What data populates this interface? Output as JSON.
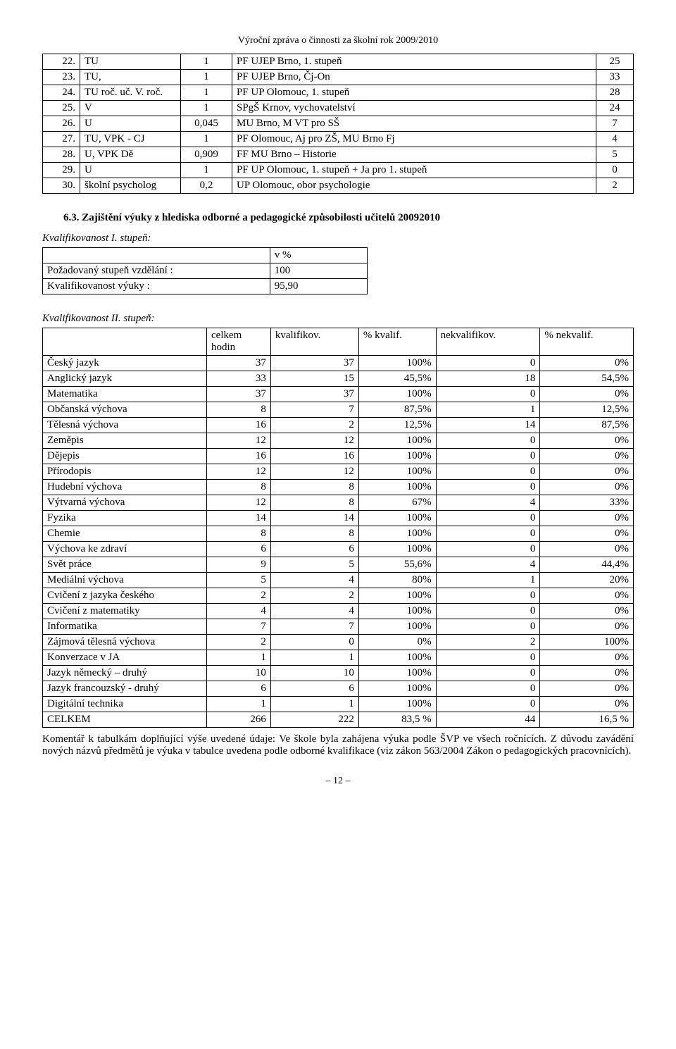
{
  "header": "Výroční zpráva o činnosti za školní rok 2009/2010",
  "teachers": {
    "rows": [
      {
        "n": "22.",
        "code": "TU",
        "v": "1",
        "desc": "PF UJEP Brno, 1. stupeň",
        "e": "25"
      },
      {
        "n": "23.",
        "code": "TU,",
        "v": "1",
        "desc": "PF UJEP Brno, Čj-On",
        "e": "33"
      },
      {
        "n": "24.",
        "code": "TU roč. uč. V. roč.",
        "v": "1",
        "desc": "PF UP Olomouc, 1. stupeň",
        "e": "28"
      },
      {
        "n": "25.",
        "code": "V",
        "v": "1",
        "desc": "SPgŠ Krnov, vychovatelství",
        "e": "24"
      },
      {
        "n": "26.",
        "code": "U",
        "v": "0,045",
        "desc": "MU Brno, M VT pro SŠ",
        "e": "7"
      },
      {
        "n": "27.",
        "code": "TU, VPK - CJ",
        "v": "1",
        "desc": "PF Olomouc, Aj pro ZŠ, MU Brno Fj",
        "e": "4"
      },
      {
        "n": "28.",
        "code": "U, VPK Dě",
        "v": "0,909",
        "desc": "FF MU Brno – Historie",
        "e": "5"
      },
      {
        "n": "29.",
        "code": "U",
        "v": "1",
        "desc": "PF UP Olomouc, 1. stupeň + Ja pro 1. stupeň",
        "e": "0"
      },
      {
        "n": "30.",
        "code": "školní psycholog",
        "v": "0,2",
        "desc": "UP Olomouc, obor psychologie",
        "e": "2"
      }
    ]
  },
  "section63": "6.3. Zajištění výuky z hlediska odborné a pedagogické způsobilosti učitelů 20092010",
  "kval1": {
    "caption": "Kvalifikovanost I. stupeň:",
    "h_pct": "v %",
    "rows": [
      {
        "label": "Požadovaný stupeň vzdělání :",
        "val": "100"
      },
      {
        "label": "Kvalifikovanost výuky :",
        "val": "95,90"
      }
    ]
  },
  "kval2": {
    "caption": "Kvalifikovanost II. stupeň:",
    "head": [
      "",
      "celkem hodin",
      "kvalifikov.",
      "% kvalif.",
      "nekvalifikov.",
      "% nekvalif."
    ],
    "rows": [
      [
        "Český jazyk",
        "37",
        "37",
        "100%",
        "0",
        "0%"
      ],
      [
        "Anglický jazyk",
        "33",
        "15",
        "45,5%",
        "18",
        "54,5%"
      ],
      [
        "Matematika",
        "37",
        "37",
        "100%",
        "0",
        "0%"
      ],
      [
        "Občanská výchova",
        "8",
        "7",
        "87,5%",
        "1",
        "12,5%"
      ],
      [
        "Tělesná výchova",
        "16",
        "2",
        "12,5%",
        "14",
        "87,5%"
      ],
      [
        "Zeměpis",
        "12",
        "12",
        "100%",
        "0",
        "0%"
      ],
      [
        "Dějepis",
        "16",
        "16",
        "100%",
        "0",
        "0%"
      ],
      [
        "Přírodopis",
        "12",
        "12",
        "100%",
        "0",
        "0%"
      ],
      [
        "Hudební výchova",
        "8",
        "8",
        "100%",
        "0",
        "0%"
      ],
      [
        "Výtvarná výchova",
        "12",
        "8",
        "67%",
        "4",
        "33%"
      ],
      [
        "Fyzika",
        "14",
        "14",
        "100%",
        "0",
        "0%"
      ],
      [
        "Chemie",
        "8",
        "8",
        "100%",
        "0",
        "0%"
      ],
      [
        "Výchova ke zdraví",
        "6",
        "6",
        "100%",
        "0",
        "0%"
      ],
      [
        "Svět práce",
        "9",
        "5",
        "55,6%",
        "4",
        "44,4%"
      ],
      [
        "Mediální výchova",
        "5",
        "4",
        "80%",
        "1",
        "20%"
      ],
      [
        "Cvičení z jazyka českého",
        "2",
        "2",
        "100%",
        "0",
        "0%"
      ],
      [
        "Cvičení z matematiky",
        "4",
        "4",
        "100%",
        "0",
        "0%"
      ],
      [
        "Informatika",
        "7",
        "7",
        "100%",
        "0",
        "0%"
      ],
      [
        "Zájmová tělesná výchova",
        "2",
        "0",
        "0%",
        "2",
        "100%"
      ],
      [
        "Konverzace v JA",
        "1",
        "1",
        "100%",
        "0",
        "0%"
      ],
      [
        "Jazyk německý – druhý",
        "10",
        "10",
        "100%",
        "0",
        "0%"
      ],
      [
        "Jazyk francouzský - druhý",
        "6",
        "6",
        "100%",
        "0",
        "0%"
      ],
      [
        "Digitální technika",
        "1",
        "1",
        "100%",
        "0",
        "0%"
      ],
      [
        "CELKEM",
        "266",
        "222",
        "83,5 %",
        "44",
        "16,5 %"
      ]
    ]
  },
  "comment_label": "Komentář k tabulkám doplňující výše uvedené údaje:",
  "comment_body": " Ve škole byla zahájena výuka podle ŠVP ve všech ročnících. Z důvodu zavádění nových názvů předmětů je výuka v tabulce uvedena podle odborné kvalifikace (viz zákon 563/2004 Zákon o pedagogických pracovnících).",
  "page_num": "– 12 –"
}
